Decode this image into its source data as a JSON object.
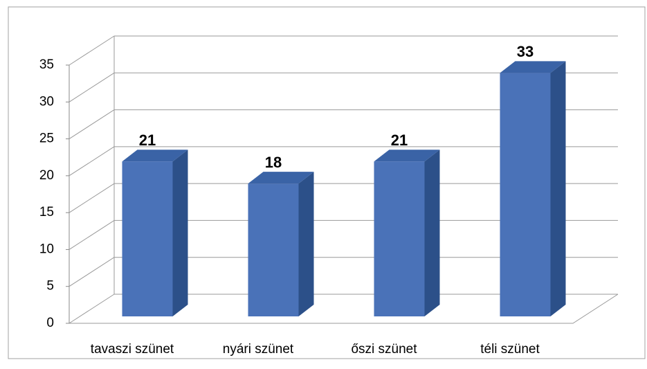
{
  "chart_data": {
    "type": "bar3d",
    "categories": [
      "tavaszi szünet",
      "nyári szünet",
      "őszi szünet",
      "téli szünet"
    ],
    "values": [
      21,
      18,
      21,
      33
    ],
    "color": "#4a72b8",
    "ylim": [
      0,
      35
    ],
    "yticks": [
      0,
      5,
      10,
      15,
      20,
      25,
      30,
      35
    ],
    "grid": true
  }
}
